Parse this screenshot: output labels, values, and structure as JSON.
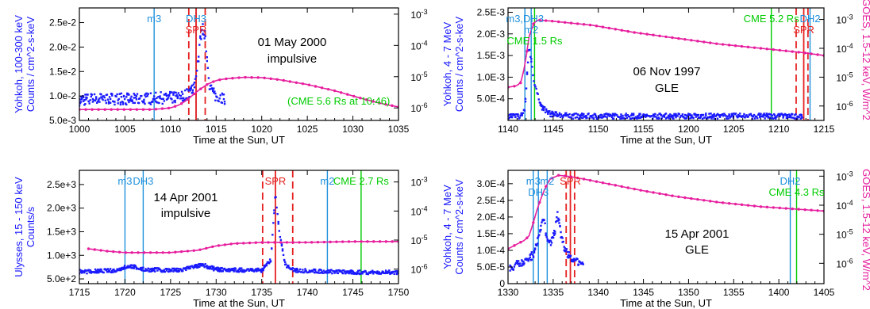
{
  "right_axis_label_top": "GOES, 1.5-12 keV, W/m^2",
  "right_axis_label_bottom": "GOES, 1.5-12 keV, W/m^2",
  "colors": {
    "counts": "#1a1aff",
    "goes": "#e61e9e",
    "event_line": "#1e90dc",
    "spr": "#e62020",
    "cme": "#00cc00"
  },
  "chart_data": [
    {
      "type": "scatter",
      "title": "01 May 2000",
      "subtitle": "impulsive",
      "xlabel": "Time at the Sun, UT",
      "ylabel": [
        "Yohkoh, 100-300 keV",
        "Counts / cm^2-s-keV"
      ],
      "xlim": [
        1000,
        1035
      ],
      "xticks": [
        "1000",
        "1005",
        "1010",
        "1015",
        "1020",
        "1025",
        "1030",
        "1035"
      ],
      "ylim": [
        0.005,
        0.028
      ],
      "yticks": [
        {
          "v": 0.005,
          "label": "5.0e-3"
        },
        {
          "v": 0.01,
          "label": "1.0e-2"
        },
        {
          "v": 0.015,
          "label": "1.5e-2"
        },
        {
          "v": 0.02,
          "label": "2.0e-2"
        },
        {
          "v": 0.025,
          "label": "2.5e-2"
        }
      ],
      "y2lim": [
        -6.4,
        -2.8
      ],
      "y2ticks": [
        {
          "v": -6,
          "label": "10^-6"
        },
        {
          "v": -5,
          "label": "10^-5"
        },
        {
          "v": -4,
          "label": "10^-4"
        },
        {
          "v": -3,
          "label": "10^-3"
        }
      ],
      "counts": [
        [
          1000,
          0.0092
        ],
        [
          1003,
          0.0095
        ],
        [
          1006,
          0.0093
        ],
        [
          1009,
          0.0096
        ],
        [
          1011,
          0.0097
        ],
        [
          1012,
          0.0105
        ],
        [
          1012.8,
          0.013
        ],
        [
          1013.3,
          0.022
        ],
        [
          1013.6,
          0.024
        ],
        [
          1013.9,
          0.02
        ],
        [
          1014.3,
          0.012
        ],
        [
          1014.8,
          0.0102
        ],
        [
          1016,
          0.0095
        ]
      ],
      "counts_noise": 0.0012,
      "goes_log": [
        [
          1000,
          -6.05
        ],
        [
          1004,
          -6.05
        ],
        [
          1008,
          -6.05
        ],
        [
          1010,
          -6.0
        ],
        [
          1011,
          -5.9
        ],
        [
          1012,
          -5.7
        ],
        [
          1013,
          -5.45
        ],
        [
          1014,
          -5.25
        ],
        [
          1015,
          -5.12
        ],
        [
          1016,
          -5.07
        ],
        [
          1018,
          -5.02
        ],
        [
          1020,
          -5.03
        ],
        [
          1022,
          -5.1
        ],
        [
          1025,
          -5.25
        ],
        [
          1028,
          -5.45
        ],
        [
          1031,
          -5.7
        ],
        [
          1033,
          -5.85
        ],
        [
          1035,
          -5.97
        ]
      ],
      "events": [
        {
          "type": "event",
          "label": "m3",
          "x": 1008.2,
          "style": "solid"
        },
        {
          "type": "event",
          "label": "DH3",
          "x": 1012.8,
          "style": "solid"
        },
        {
          "type": "spr",
          "label": "SPR",
          "x": 1012.8,
          "style": "solid"
        },
        {
          "type": "spr",
          "label": "",
          "x": 1012,
          "style": "dashed"
        },
        {
          "type": "spr",
          "label": "",
          "x": 1013.8,
          "style": "dashed"
        }
      ],
      "annotation": "(CME 5.6 Rs at 10:46)"
    },
    {
      "type": "scatter",
      "title": "06 Nov 1997",
      "subtitle": "GLE",
      "xlabel": "Time at the Sun, UT",
      "ylabel": [
        "Yohkoh, 4 - 7 MeV",
        "Counts / cm^2-s-keV"
      ],
      "xlim": [
        1140,
        1215
      ],
      "xticks": [
        "1140",
        "1145",
        "1150",
        "1155",
        "1200",
        "1205",
        "1210",
        "1215"
      ],
      "ylim": [
        0,
        0.0026
      ],
      "yticks": [
        {
          "v": 0.0005,
          "label": "5.0E-4"
        },
        {
          "v": 0.001,
          "label": "1.0E-3"
        },
        {
          "v": 0.0015,
          "label": "1.5E-3"
        },
        {
          "v": 0.002,
          "label": "2.0E-3"
        },
        {
          "v": 0.0025,
          "label": "2.5E-3"
        }
      ],
      "y2lim": [
        -6.5,
        -2.6
      ],
      "y2ticks": [
        {
          "v": -6,
          "label": "10^-6"
        },
        {
          "v": -5,
          "label": "10^-5"
        },
        {
          "v": -4,
          "label": "10^-4"
        },
        {
          "v": -3,
          "label": "10^-3"
        }
      ],
      "counts": [
        [
          1140,
          0.0001
        ],
        [
          1143,
          0.0001
        ],
        [
          1144,
          0.00025
        ],
        [
          1144.5,
          0.001
        ],
        [
          1145,
          0.0017
        ],
        [
          1145.5,
          0.0014
        ],
        [
          1146,
          0.001
        ],
        [
          1147,
          0.0006
        ],
        [
          1148,
          0.0003
        ],
        [
          1150,
          0.00015
        ],
        [
          1155,
          0.0001
        ],
        [
          1210,
          0.0001
        ]
      ],
      "counts_noise": 6e-05,
      "goes_log": [
        [
          1140,
          -5.35
        ],
        [
          1142,
          -5.3
        ],
        [
          1143,
          -5.2
        ],
        [
          1144,
          -4.6
        ],
        [
          1145,
          -3.6
        ],
        [
          1146,
          -3.15
        ],
        [
          1147,
          -3.02
        ],
        [
          1150,
          -3.05
        ],
        [
          1160,
          -3.2
        ],
        [
          1170,
          -3.45
        ],
        [
          1180,
          -3.65
        ],
        [
          1190,
          -3.85
        ],
        [
          1200,
          -4.0
        ],
        [
          1210,
          -4.15
        ],
        [
          1215,
          -4.25
        ]
      ],
      "events": [
        {
          "type": "event",
          "label": "m3,DH3",
          "x": 1144,
          "style": "solid"
        },
        {
          "type": "event",
          "label": "m2",
          "x": 1145.5,
          "style": "solid"
        },
        {
          "type": "cme",
          "label": "CME 1.5 Rs",
          "x": 1146.3,
          "style": "solid"
        },
        {
          "type": "cme",
          "label": "CME 5.2 Rs",
          "x": 1202.5,
          "style": "solid"
        },
        {
          "type": "spr",
          "label": "SPR",
          "x": 1210.2,
          "style": "solid"
        },
        {
          "type": "spr",
          "label": "",
          "x": 1208.4,
          "style": "dashed"
        },
        {
          "type": "spr",
          "label": "",
          "x": 1211.2,
          "style": "dashed"
        },
        {
          "type": "event",
          "label": "DH2",
          "x": 1211.7,
          "style": "solid"
        }
      ]
    },
    {
      "type": "scatter",
      "title": "14 Apr 2001",
      "subtitle": "impulsive",
      "xlabel": "Time at the Sun, UT",
      "ylabel": [
        "Ulysses, 15 - 150 keV",
        "Counts/s"
      ],
      "xlim": [
        1715,
        1750
      ],
      "xticks": [
        "1715",
        "1720",
        "1725",
        "1730",
        "1735",
        "1740",
        "1745",
        "1750"
      ],
      "ylim": [
        400,
        2800
      ],
      "yticks": [
        {
          "v": 500,
          "label": "5.0e+2"
        },
        {
          "v": 1000,
          "label": "1.0e+3"
        },
        {
          "v": 1500,
          "label": "1.5e+3"
        },
        {
          "v": 2000,
          "label": "2.0e+3"
        },
        {
          "v": 2500,
          "label": "2.5e+3"
        }
      ],
      "y2lim": [
        -6.5,
        -2.6
      ],
      "y2ticks": [
        {
          "v": -6,
          "label": "10^-6"
        },
        {
          "v": -5,
          "label": "10^-5"
        },
        {
          "v": -4,
          "label": "10^-4"
        },
        {
          "v": -3,
          "label": "10^-3"
        }
      ],
      "counts": [
        [
          1715,
          650
        ],
        [
          1719,
          680
        ],
        [
          1720.5,
          780
        ],
        [
          1722,
          700
        ],
        [
          1726,
          680
        ],
        [
          1728.5,
          800
        ],
        [
          1730,
          700
        ],
        [
          1735,
          680
        ],
        [
          1736,
          900
        ],
        [
          1736.5,
          2300
        ],
        [
          1737,
          1400
        ],
        [
          1737.6,
          800
        ],
        [
          1738.5,
          680
        ],
        [
          1745,
          640
        ],
        [
          1750,
          640
        ]
      ],
      "counts_noise": 40,
      "goes_log": [
        [
          1716,
          -5.3
        ],
        [
          1718,
          -5.38
        ],
        [
          1720,
          -5.43
        ],
        [
          1725,
          -5.43
        ],
        [
          1728,
          -5.35
        ],
        [
          1730,
          -5.2
        ],
        [
          1732,
          -5.12
        ],
        [
          1735,
          -5.08
        ],
        [
          1740,
          -5.08
        ],
        [
          1745,
          -5.05
        ],
        [
          1750,
          -5.05
        ]
      ],
      "events": [
        {
          "type": "event",
          "label": "m3",
          "x": 1720,
          "style": "solid"
        },
        {
          "type": "event",
          "label": "DH3",
          "x": 1722,
          "style": "solid"
        },
        {
          "type": "spr",
          "label": "SPR",
          "x": 1736.5,
          "style": "solid"
        },
        {
          "type": "spr",
          "label": "",
          "x": 1735.1,
          "style": "dashed"
        },
        {
          "type": "spr",
          "label": "",
          "x": 1738.4,
          "style": "dashed"
        },
        {
          "type": "event",
          "label": "m2",
          "x": 1742.2,
          "style": "solid"
        },
        {
          "type": "cme",
          "label": "CME 2.7 Rs",
          "x": 1745.9,
          "style": "solid"
        }
      ]
    },
    {
      "type": "scatter",
      "title": "15 Apr 2001",
      "subtitle": "GLE",
      "xlabel": "Time at the Sun, UT",
      "ylabel": [
        "Yohkoh, 4 - 7 MeV",
        "Counts / cm^2-s-keV"
      ],
      "xlim": [
        1330,
        1405
      ],
      "xticks": [
        "1330",
        "1335",
        "1340",
        "1345",
        "1350",
        "1355",
        "1400",
        "1405"
      ],
      "ylim": [
        0,
        0.00034
      ],
      "yticks": [
        {
          "v": 0,
          "label": "0"
        },
        {
          "v": 5e-05,
          "label": "5.0E-5"
        },
        {
          "v": 0.0001,
          "label": "1.0E-4"
        },
        {
          "v": 0.00015,
          "label": "1.5E-4"
        },
        {
          "v": 0.0002,
          "label": "2.0E-4"
        },
        {
          "v": 0.00025,
          "label": "2.5E-4"
        },
        {
          "v": 0.0003,
          "label": "3.0E-4"
        }
      ],
      "y2lim": [
        -6.7,
        -2.8
      ],
      "y2ticks": [
        {
          "v": -6,
          "label": "10^-6"
        },
        {
          "v": -5,
          "label": "10^-5"
        },
        {
          "v": -4,
          "label": "10^-4"
        },
        {
          "v": -3,
          "label": "10^-3"
        }
      ],
      "counts": [
        [
          1330.5,
          5e-05
        ],
        [
          1333,
          6e-05
        ],
        [
          1335,
          7e-05
        ],
        [
          1336.5,
          0.0001
        ],
        [
          1337.5,
          0.00016
        ],
        [
          1338.5,
          0.00019
        ],
        [
          1339.2,
          0.00014
        ],
        [
          1340,
          0.00012
        ],
        [
          1341,
          0.00015
        ],
        [
          1341.8,
          0.00021
        ],
        [
          1342.5,
          0.00015
        ],
        [
          1343.5,
          0.0001
        ],
        [
          1345,
          8e-05
        ],
        [
          1346,
          7e-05
        ],
        [
          1348,
          6e-05
        ]
      ],
      "counts_noise": 1.2e-05,
      "goes_log": [
        [
          1330,
          -5.5
        ],
        [
          1332,
          -5.35
        ],
        [
          1334,
          -5.2
        ],
        [
          1335,
          -5.05
        ],
        [
          1336,
          -4.6
        ],
        [
          1337,
          -4.1
        ],
        [
          1338,
          -3.7
        ],
        [
          1339,
          -3.35
        ],
        [
          1340,
          -3.1
        ],
        [
          1342,
          -2.97
        ],
        [
          1344,
          -3.0
        ],
        [
          1348,
          -3.1
        ],
        [
          1355,
          -3.3
        ],
        [
          1362,
          -3.5
        ],
        [
          1370,
          -3.7
        ],
        [
          1380,
          -3.9
        ],
        [
          1390,
          -4.05
        ],
        [
          1400,
          -4.15
        ],
        [
          1405,
          -4.2
        ]
      ],
      "events": [
        {
          "type": "event",
          "label": "m3",
          "x": 1336,
          "style": "solid"
        },
        {
          "type": "event",
          "label": "DH3",
          "x": 1337.2,
          "style": "solid"
        },
        {
          "type": "event",
          "label": "m2",
          "x": 1339.3,
          "style": "solid"
        },
        {
          "type": "spr",
          "label": "SPR",
          "x": 1344.8,
          "style": "solid"
        },
        {
          "type": "spr",
          "label": "",
          "x": 1343.8,
          "style": "dashed"
        },
        {
          "type": "spr",
          "label": "",
          "x": 1345.8,
          "style": "dashed"
        },
        {
          "type": "event",
          "label": "DH2",
          "x": 1397,
          "style": "solid"
        },
        {
          "type": "cme",
          "label": "CME 4.3 Rs",
          "x": 1398.5,
          "style": "solid"
        }
      ]
    }
  ]
}
